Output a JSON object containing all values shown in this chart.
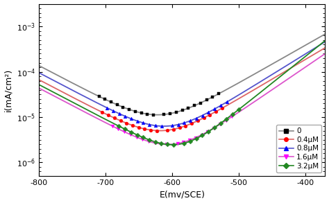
{
  "title": "",
  "xlabel": "E(mv/SCE)",
  "ylabel": "i(mA/cm²)",
  "xlim": [
    -800,
    -370
  ],
  "ylim_log": [
    -6.3,
    -2.5
  ],
  "series": [
    {
      "label": "0",
      "line_color": "#888888",
      "marker": "s",
      "marker_color": "black",
      "ecorr": -620,
      "icorr_log": -5.25,
      "ba": 0.12,
      "bc": 0.13
    },
    {
      "label": "0.4μM",
      "line_color": "#dd6666",
      "marker": "o",
      "marker_color": "red",
      "ecorr": -615,
      "icorr_log": -5.6,
      "ba": 0.115,
      "bc": 0.13
    },
    {
      "label": "0.8μM",
      "line_color": "#5555cc",
      "marker": "^",
      "marker_color": "blue",
      "ecorr": -608,
      "icorr_log": -5.5,
      "ba": 0.11,
      "bc": 0.13
    },
    {
      "label": "1.6μM",
      "line_color": "#dd55cc",
      "marker": "v",
      "marker_color": "magenta",
      "ecorr": -600,
      "icorr_log": -5.9,
      "ba": 0.1,
      "bc": 0.13
    },
    {
      "label": "3.2μM",
      "line_color": "#228822",
      "marker": "D",
      "marker_color": "#228822",
      "ecorr": -590,
      "icorr_log": -5.9,
      "ba": 0.085,
      "bc": 0.13
    }
  ],
  "background_color": "#ffffff"
}
